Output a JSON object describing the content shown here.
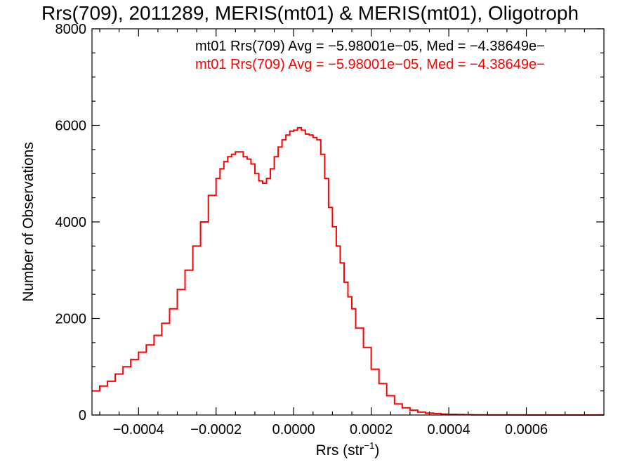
{
  "chart_data": {
    "type": "line",
    "title": "Rrs(709), 2011289, MERIS(mt01) & MERIS(mt01), Oligotroph",
    "xlabel_main": "Rrs (str",
    "xlabel_sup": "−1",
    "xlabel_end": ")",
    "ylabel": "Number of Observations",
    "xlim": [
      -0.00052,
      0.0008
    ],
    "ylim": [
      0,
      8000
    ],
    "x_ticks": [
      -0.0004,
      -0.0002,
      0.0,
      0.0002,
      0.0004,
      0.0006
    ],
    "x_tick_labels": [
      "−0.0004",
      "−0.0002",
      "0.0000",
      "0.0002",
      "0.0004",
      "0.0006"
    ],
    "y_ticks": [
      0,
      2000,
      4000,
      6000,
      8000
    ],
    "y_tick_labels": [
      "0",
      "2000",
      "4000",
      "6000",
      "8000"
    ],
    "annotations": [
      {
        "text": "mt01 Rrs(709) Avg = −5.98001e−05, Med = −4.38649e−",
        "color": "#000000"
      },
      {
        "text": "mt01 Rrs(709) Avg = −5.98001e−05, Med = −4.38649e−",
        "color": "#ff0000"
      }
    ],
    "series": [
      {
        "color": "#ff0000",
        "step": true,
        "x": [
          -0.00052,
          -0.0005,
          -0.00048,
          -0.00046,
          -0.00044,
          -0.00042,
          -0.0004,
          -0.00038,
          -0.00036,
          -0.00034,
          -0.00032,
          -0.0003,
          -0.00028,
          -0.00026,
          -0.00024,
          -0.00022,
          -0.0002,
          -0.00019,
          -0.00018,
          -0.00017,
          -0.00016,
          -0.00015,
          -0.00014,
          -0.00013,
          -0.00012,
          -0.00011,
          -0.0001,
          -9e-05,
          -8e-05,
          -7e-05,
          -6e-05,
          -5e-05,
          -4e-05,
          -3e-05,
          -2e-05,
          -1e-05,
          0.0,
          1e-05,
          2e-05,
          3e-05,
          4e-05,
          5e-05,
          6e-05,
          7e-05,
          8e-05,
          9e-05,
          0.0001,
          0.00011,
          0.00012,
          0.00013,
          0.00014,
          0.00015,
          0.00016,
          0.00018,
          0.0002,
          0.00022,
          0.00024,
          0.00026,
          0.00028,
          0.0003,
          0.00032,
          0.00034,
          0.00036,
          0.00038,
          0.0004,
          0.00042,
          0.00044,
          0.00046,
          0.00048,
          0.0005,
          0.00055,
          0.0006,
          0.0007,
          0.0008
        ],
        "y": [
          500,
          600,
          700,
          850,
          1000,
          1150,
          1300,
          1450,
          1650,
          1900,
          2200,
          2600,
          3000,
          3500,
          4000,
          4550,
          4900,
          5100,
          5250,
          5350,
          5400,
          5450,
          5450,
          5350,
          5300,
          5200,
          5000,
          4850,
          4800,
          4900,
          5100,
          5350,
          5550,
          5700,
          5800,
          5880,
          5900,
          5950,
          5900,
          5820,
          5800,
          5750,
          5700,
          5400,
          4900,
          4300,
          3900,
          3500,
          3150,
          2750,
          2450,
          2200,
          1800,
          1400,
          950,
          650,
          400,
          230,
          150,
          100,
          60,
          40,
          30,
          20,
          15,
          10,
          8,
          5,
          3,
          2,
          1,
          0,
          0,
          0
        ]
      }
    ]
  }
}
